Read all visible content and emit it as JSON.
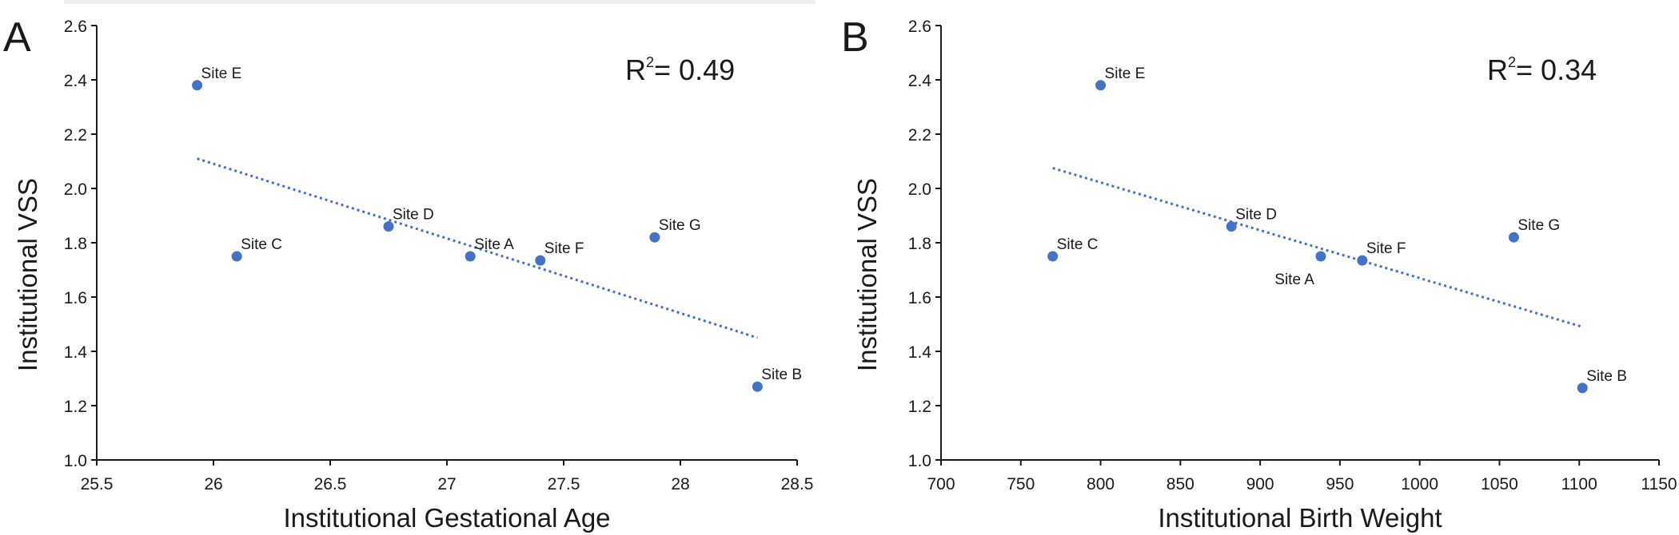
{
  "colors": {
    "point": "#4472C4",
    "trend": "#4472C4",
    "axis": "#1a1a1a"
  },
  "chart_data": [
    {
      "type": "scatter",
      "panel_label": "A",
      "xlabel": "Institutional Gestational Age",
      "ylabel": "Institutional VSS",
      "xlim": [
        25.5,
        28.5
      ],
      "ylim": [
        1.0,
        2.6
      ],
      "xticks": [
        "25.5",
        "26",
        "26.5",
        "27",
        "27.5",
        "28",
        "28.5"
      ],
      "yticks": [
        "1.0",
        "1.2",
        "1.4",
        "1.6",
        "1.8",
        "2.0",
        "2.2",
        "2.4",
        "2.6"
      ],
      "r2_prefix": "R",
      "r2_sup": "2",
      "r2_value": "= 0.49",
      "points": [
        {
          "label": "Site E",
          "x": 25.93,
          "y": 2.38
        },
        {
          "label": "Site C",
          "x": 26.1,
          "y": 1.75
        },
        {
          "label": "Site D",
          "x": 26.75,
          "y": 1.86
        },
        {
          "label": "Site A",
          "x": 27.1,
          "y": 1.75
        },
        {
          "label": "Site F",
          "x": 27.4,
          "y": 1.735
        },
        {
          "label": "Site G",
          "x": 27.89,
          "y": 1.82
        },
        {
          "label": "Site B",
          "x": 28.33,
          "y": 1.27
        }
      ],
      "trendline": {
        "x": [
          25.93,
          28.33
        ],
        "y": [
          2.11,
          1.45
        ],
        "style": "dotted"
      }
    },
    {
      "type": "scatter",
      "panel_label": "B",
      "xlabel": "Institutional Birth Weight",
      "ylabel": "Institutional VSS",
      "xlim": [
        700,
        1150
      ],
      "ylim": [
        1.0,
        2.6
      ],
      "xticks": [
        "700",
        "750",
        "800",
        "850",
        "900",
        "950",
        "1000",
        "1050",
        "1100",
        "1150"
      ],
      "yticks": [
        "1.0",
        "1.2",
        "1.4",
        "1.6",
        "1.8",
        "2.0",
        "2.2",
        "2.4",
        "2.6"
      ],
      "r2_prefix": "R",
      "r2_sup": "2",
      "r2_value": "= 0.34",
      "points": [
        {
          "label": "Site E",
          "x": 800,
          "y": 2.38
        },
        {
          "label": "Site C",
          "x": 770,
          "y": 1.75
        },
        {
          "label": "Site D",
          "x": 882,
          "y": 1.86
        },
        {
          "label": "Site A",
          "x": 938,
          "y": 1.75,
          "label_below": true
        },
        {
          "label": "Site F",
          "x": 964,
          "y": 1.735
        },
        {
          "label": "Site G",
          "x": 1059,
          "y": 1.82
        },
        {
          "label": "Site B",
          "x": 1102,
          "y": 1.265
        }
      ],
      "trendline": {
        "x": [
          770,
          1102
        ],
        "y": [
          2.075,
          1.49
        ],
        "style": "dotted"
      }
    }
  ]
}
